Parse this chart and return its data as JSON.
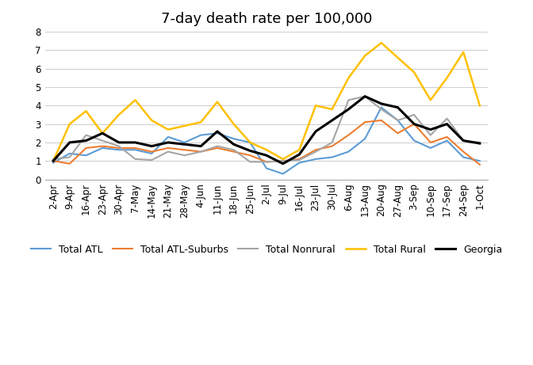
{
  "title": "7-day death rate per 100,000",
  "xlabels": [
    "2-Apr",
    "9-Apr",
    "16-Apr",
    "23-Apr",
    "30-Apr",
    "7-May",
    "14-May",
    "21-May",
    "28-May",
    "4-Jun",
    "11-Jun",
    "18-Jun",
    "25-Jun",
    "2-Jul",
    "9-Jul",
    "16-Jul",
    "23-Jul",
    "30-Jul",
    "6-Aug",
    "13-Aug",
    "20-Aug",
    "27-Aug",
    "3-Sep",
    "10-Sep",
    "17-Sep",
    "24-Sep",
    "1-Oct"
  ],
  "ylim": [
    0,
    8
  ],
  "yticks": [
    0,
    1,
    2,
    3,
    4,
    5,
    6,
    7,
    8
  ],
  "series": {
    "Total ATL": {
      "color": "#5B9BD5",
      "lw": 1.5,
      "data": [
        0.9,
        1.4,
        1.3,
        1.7,
        1.6,
        1.6,
        1.4,
        2.3,
        2.0,
        2.4,
        2.5,
        2.2,
        2.0,
        0.6,
        0.3,
        0.9,
        1.1,
        1.2,
        1.5,
        2.2,
        3.9,
        3.2,
        2.1,
        1.7,
        2.1,
        1.2,
        1.0
      ]
    },
    "Total ATL-Suburbs": {
      "color": "#ED7D31",
      "lw": 1.5,
      "data": [
        1.0,
        0.85,
        1.7,
        1.8,
        1.7,
        1.7,
        1.5,
        1.7,
        1.6,
        1.5,
        1.7,
        1.5,
        1.3,
        0.95,
        1.0,
        1.1,
        1.6,
        1.8,
        2.4,
        3.1,
        3.2,
        2.5,
        3.0,
        2.0,
        2.3,
        1.5,
        0.8
      ]
    },
    "Total Nonrural": {
      "color": "#A5A5A5",
      "lw": 1.5,
      "data": [
        1.1,
        1.2,
        2.4,
        2.1,
        1.8,
        1.1,
        1.05,
        1.5,
        1.3,
        1.5,
        1.8,
        1.6,
        0.95,
        0.95,
        1.0,
        1.05,
        1.5,
        2.0,
        4.3,
        4.5,
        3.8,
        3.2,
        3.5,
        2.4,
        3.3,
        2.1,
        2.0
      ]
    },
    "Total Rural": {
      "color": "#FFC000",
      "lw": 1.8,
      "data": [
        1.0,
        3.0,
        3.7,
        2.5,
        3.5,
        4.3,
        3.2,
        2.7,
        2.9,
        3.1,
        4.2,
        3.0,
        2.0,
        1.6,
        1.1,
        1.6,
        4.0,
        3.8,
        5.5,
        6.7,
        7.4,
        6.6,
        5.8,
        4.3,
        5.5,
        6.9,
        4.0
      ]
    },
    "Georgia": {
      "color": "#000000",
      "lw": 2.2,
      "data": [
        1.0,
        2.0,
        2.1,
        2.5,
        2.0,
        2.0,
        1.8,
        2.0,
        1.9,
        1.8,
        2.6,
        1.9,
        1.55,
        1.3,
        0.85,
        1.35,
        2.6,
        3.2,
        3.8,
        4.5,
        4.1,
        3.9,
        3.0,
        2.7,
        3.0,
        2.1,
        1.95
      ]
    }
  },
  "legend_order": [
    "Total ATL",
    "Total ATL-Suburbs",
    "Total Nonrural",
    "Total Rural",
    "Georgia"
  ],
  "background_color": "#FFFFFF",
  "grid_color": "#D0D0D0",
  "title_fontsize": 13,
  "tick_fontsize": 8.5,
  "legend_fontsize": 9
}
